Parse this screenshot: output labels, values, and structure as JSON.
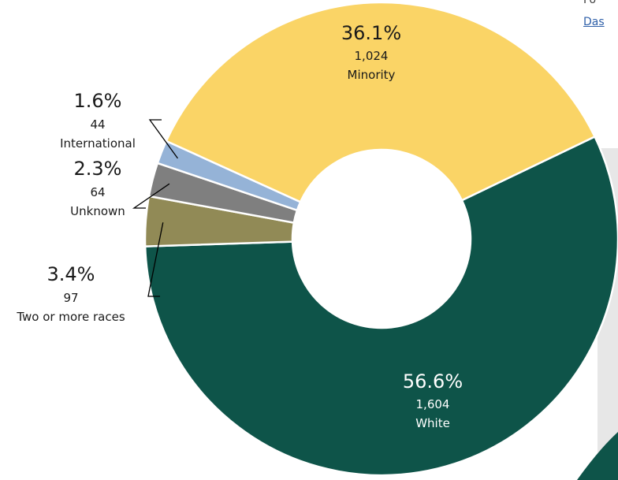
{
  "chart_data": {
    "type": "pie",
    "donut": true,
    "slices": [
      {
        "label": "White",
        "percent": "56.6%",
        "count": "1,604",
        "value": 56.6,
        "color": "#0e5449"
      },
      {
        "label": "Two or more races",
        "percent": "3.4%",
        "count": "97",
        "value": 3.4,
        "color": "#918a56"
      },
      {
        "label": "Unknown",
        "percent": "2.3%",
        "count": "64",
        "value": 2.3,
        "color": "#7f7f7f"
      },
      {
        "label": "International",
        "percent": "1.6%",
        "count": "44",
        "value": 1.6,
        "color": "#95b3d7"
      },
      {
        "label": "Minority",
        "percent": "36.1%",
        "count": "1,024",
        "value": 36.1,
        "color": "#fad466"
      }
    ]
  },
  "clipped_text": {
    "line1": "Fo",
    "link": "Das"
  }
}
